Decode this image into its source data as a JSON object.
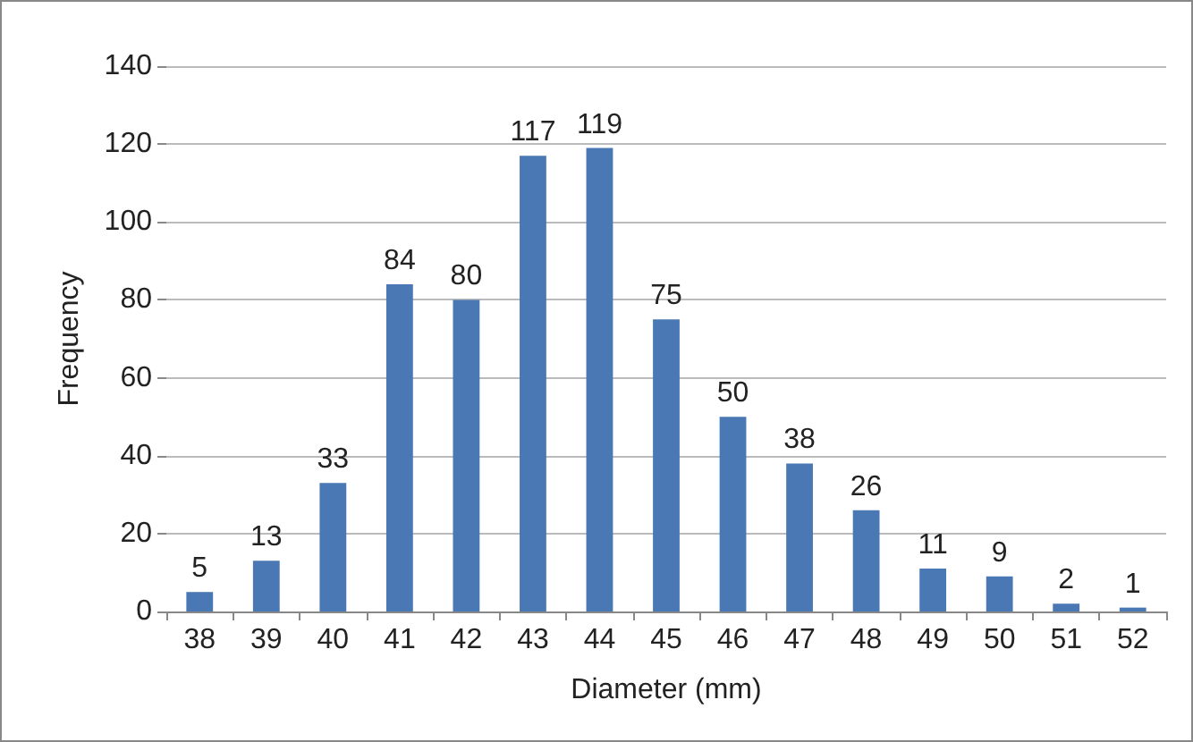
{
  "chart_data": {
    "type": "bar",
    "xlabel": "Diameter (mm)",
    "ylabel": "Frequency",
    "categories": [
      "38",
      "39",
      "40",
      "41",
      "42",
      "43",
      "44",
      "45",
      "46",
      "47",
      "48",
      "49",
      "50",
      "51",
      "52"
    ],
    "values": [
      5,
      13,
      33,
      84,
      80,
      117,
      119,
      75,
      50,
      38,
      26,
      11,
      9,
      2,
      1
    ],
    "color": "#4a78b4",
    "ylim": [
      0,
      140
    ],
    "yticks": [
      0,
      20,
      40,
      60,
      80,
      100,
      120,
      140
    ],
    "grid": "y",
    "data_labels": true
  }
}
